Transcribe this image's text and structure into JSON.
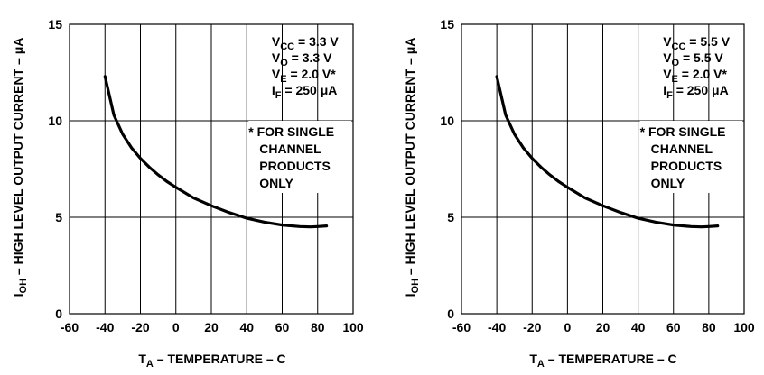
{
  "chart_data": [
    {
      "type": "line",
      "xlim": [
        -60,
        100
      ],
      "ylim": [
        0,
        15
      ],
      "x_ticks": [
        "-60",
        "-40",
        "-20",
        "0",
        "20",
        "40",
        "60",
        "80",
        "100"
      ],
      "y_ticks": [
        "0",
        "5",
        "10",
        "15"
      ],
      "grid": true,
      "xlabel": {
        "main": "T",
        "sub": "A",
        "rest": " – TEMPERATURE –  C"
      },
      "ylabel": {
        "main": "I",
        "sub": "OH",
        "rest": " – HIGH LEVEL OUTPUT CURRENT – μA"
      },
      "conditions": [
        {
          "main": "V",
          "sub": "CC",
          "rest": " = 3.3 V"
        },
        {
          "main": "V",
          "sub": "O",
          "rest": " = 3.3 V"
        },
        {
          "main": "V",
          "sub": "E",
          "rest": " = 2.0 V*"
        },
        {
          "main": "I",
          "sub": "F",
          "rest": " = 250 μA"
        }
      ],
      "footnote": [
        "* FOR SINGLE",
        "CHANNEL",
        "PRODUCTS",
        "ONLY"
      ],
      "series": [
        {
          "x": [
            -40,
            -35,
            -30,
            -25,
            -20,
            -15,
            -10,
            -5,
            0,
            10,
            20,
            30,
            40,
            50,
            60,
            70,
            76,
            80,
            85
          ],
          "values": [
            12.3,
            10.3,
            9.3,
            8.6,
            8.05,
            7.6,
            7.2,
            6.85,
            6.55,
            6.0,
            5.6,
            5.25,
            4.95,
            4.75,
            4.6,
            4.52,
            4.5,
            4.52,
            4.55
          ]
        }
      ]
    },
    {
      "type": "line",
      "xlim": [
        -60,
        100
      ],
      "ylim": [
        0,
        15
      ],
      "x_ticks": [
        "-60",
        "-40",
        "-20",
        "0",
        "20",
        "40",
        "60",
        "80",
        "100"
      ],
      "y_ticks": [
        "0",
        "5",
        "10",
        "15"
      ],
      "grid": true,
      "xlabel": {
        "main": "T",
        "sub": "A",
        "rest": " – TEMPERATURE –  C"
      },
      "ylabel": {
        "main": "I",
        "sub": "OH",
        "rest": " – HIGH LEVEL OUTPUT CURRENT – μA"
      },
      "conditions": [
        {
          "main": "V",
          "sub": "CC",
          "rest": " = 5.5 V"
        },
        {
          "main": "V",
          "sub": "O",
          "rest": " = 5.5 V"
        },
        {
          "main": "V",
          "sub": "E",
          "rest": " = 2.0 V*"
        },
        {
          "main": "I",
          "sub": "F",
          "rest": " = 250 μA"
        }
      ],
      "footnote": [
        "* FOR SINGLE",
        "CHANNEL",
        "PRODUCTS",
        "ONLY"
      ],
      "series": [
        {
          "x": [
            -40,
            -35,
            -30,
            -25,
            -20,
            -15,
            -10,
            -5,
            0,
            10,
            20,
            30,
            40,
            50,
            60,
            70,
            76,
            80,
            85
          ],
          "values": [
            12.3,
            10.3,
            9.3,
            8.6,
            8.05,
            7.6,
            7.2,
            6.85,
            6.55,
            6.0,
            5.6,
            5.25,
            4.95,
            4.75,
            4.6,
            4.52,
            4.5,
            4.52,
            4.55
          ]
        }
      ]
    }
  ]
}
